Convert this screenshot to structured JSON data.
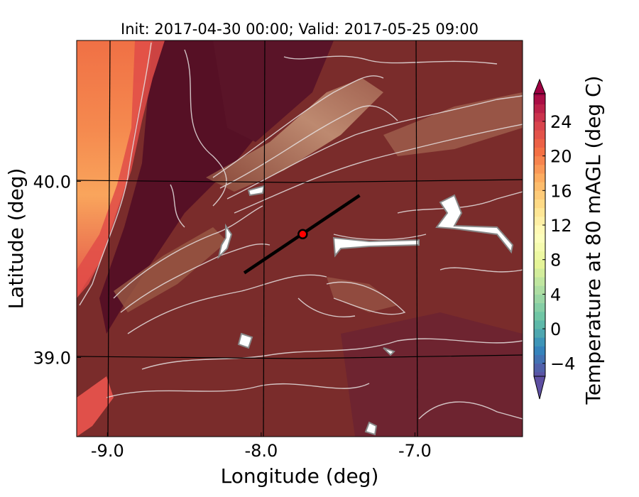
{
  "chart_data": {
    "type": "heatmap",
    "title": "Init: 2017-04-30 00:00; Valid: 2017-05-25 09:00",
    "xlabel": "Longitude (deg)",
    "ylabel": "Latitude (deg)",
    "xlim": [
      -9.2,
      -6.3
    ],
    "ylim": [
      38.55,
      40.8
    ],
    "xticks": [
      {
        "value": -9.0,
        "label": "-9.0"
      },
      {
        "value": -8.0,
        "label": "-8.0"
      },
      {
        "value": -7.0,
        "label": "-7.0"
      }
    ],
    "yticks": [
      {
        "value": 40.0,
        "label": "40.0"
      },
      {
        "value": 39.0,
        "label": "39.0"
      }
    ],
    "grid": true,
    "colorbar": {
      "label": "Temperature at 80 mAGL (deg C)",
      "range": [
        -5.5,
        27.2
      ],
      "extend": "both",
      "ticks": [
        {
          "value": 24,
          "label": "24"
        },
        {
          "value": 20,
          "label": "20"
        },
        {
          "value": 16,
          "label": "16"
        },
        {
          "value": 12,
          "label": "12"
        },
        {
          "value": 8,
          "label": "8"
        },
        {
          "value": 4,
          "label": "4"
        },
        {
          "value": 0,
          "label": "0"
        },
        {
          "value": -4,
          "label": "−4"
        }
      ],
      "colormap": [
        "#5e4fa2",
        "#3288bd",
        "#66c2a5",
        "#abdda4",
        "#e6f598",
        "#ffffbf",
        "#fee08b",
        "#fdae61",
        "#f46d43",
        "#d53e4f",
        "#9e0142"
      ]
    },
    "transect": {
      "start": {
        "lon": -8.11,
        "lat": 39.48
      },
      "end": {
        "lon": -7.36,
        "lat": 39.92
      }
    },
    "point": {
      "lon": -7.73,
      "lat": 39.7,
      "color": "#ff0000"
    }
  }
}
